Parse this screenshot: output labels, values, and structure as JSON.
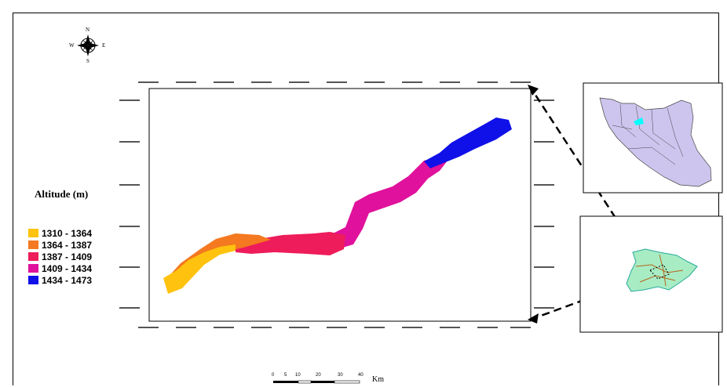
{
  "compass": {
    "n": "N",
    "s": "S",
    "e": "E",
    "w": "W"
  },
  "legend": {
    "title": "Altitude (m)",
    "items": [
      {
        "label": "1310 - 1364",
        "color": "#ffc20e"
      },
      {
        "label": "1364 - 1387",
        "color": "#f47920"
      },
      {
        "label": "1387 - 1409",
        "color": "#ee1c5a"
      },
      {
        "label": "1409 - 1434",
        "color": "#e0119c"
      },
      {
        "label": "1434 - 1473",
        "color": "#1010e8"
      }
    ]
  },
  "scalebar": {
    "ticks": [
      "0",
      "5",
      "10",
      "20",
      "30",
      "40"
    ],
    "unit": "Km"
  },
  "colors": {
    "inset_iran": "#cdc5ee",
    "inset_highlight": "#00ffff",
    "inset_region": "#a8ecc4"
  }
}
